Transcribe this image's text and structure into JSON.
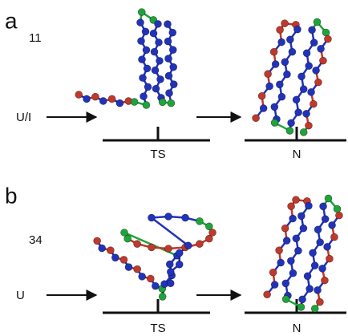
{
  "panels": [
    {
      "label": "a",
      "number": "11",
      "start": "U/I",
      "states": [
        "TS",
        "N"
      ]
    },
    {
      "label": "b",
      "number": "34",
      "start": "U",
      "states": [
        "TS",
        "N"
      ]
    }
  ]
}
